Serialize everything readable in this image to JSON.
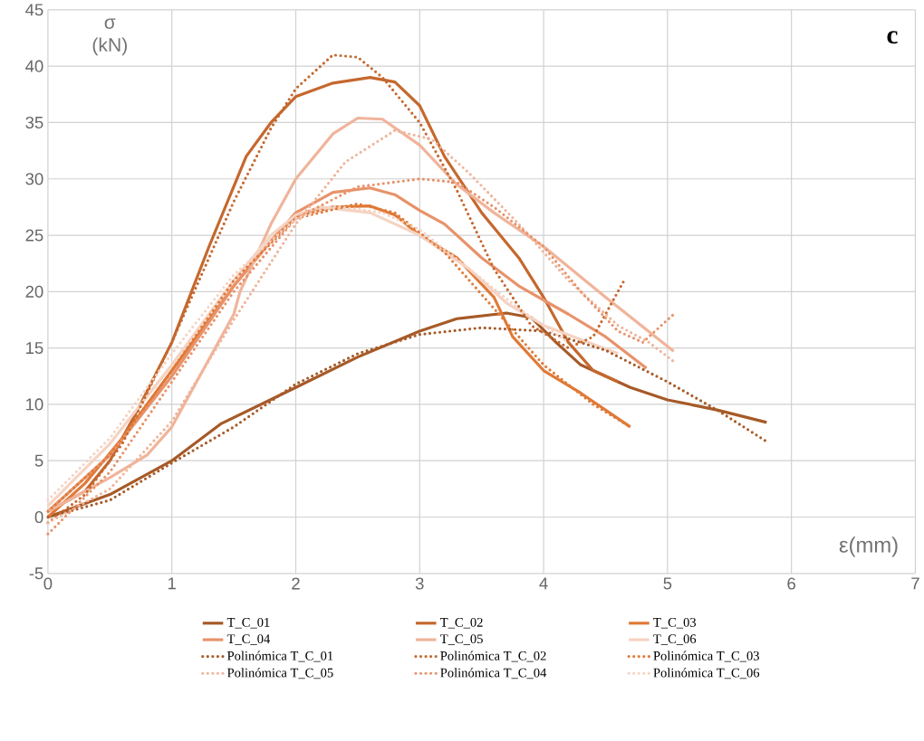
{
  "chart_data": {
    "type": "line",
    "xlabel": "ε(mm)",
    "ylabel": "σ (kN)",
    "annotations": [
      "c"
    ],
    "xlim": [
      0,
      7
    ],
    "ylim": [
      -5,
      45
    ],
    "xticks": [
      0,
      1,
      2,
      3,
      4,
      5,
      6,
      7
    ],
    "yticks": [
      -5,
      0,
      5,
      10,
      15,
      20,
      25,
      30,
      35,
      40,
      45
    ],
    "grid": true,
    "legend": "bottom",
    "marker": "none",
    "series": [
      {
        "name": "T_C_01",
        "color": "#a65a28",
        "line_style": "solid",
        "x": [
          0,
          0.5,
          1,
          1.4,
          2,
          2.5,
          3,
          3.3,
          3.7,
          3.9,
          4.1,
          4.3,
          4.7,
          5,
          5.4,
          5.8
        ],
        "values": [
          0,
          2,
          5,
          8.3,
          11.5,
          14.2,
          16.5,
          17.6,
          18.1,
          17.7,
          15.5,
          13.5,
          11.5,
          10.4,
          9.5,
          8.4
        ]
      },
      {
        "name": "T_C_02",
        "color": "#c5682e",
        "line_style": "solid",
        "x": [
          0,
          0.3,
          0.5,
          0.7,
          1,
          1.3,
          1.6,
          1.8,
          2,
          2.3,
          2.6,
          2.8,
          3,
          3.2,
          3.5,
          3.8,
          4,
          4.2,
          4.4,
          4.6
        ],
        "values": [
          0.5,
          2.3,
          5,
          9,
          15.5,
          24,
          32,
          35,
          37.3,
          38.5,
          39,
          38.6,
          36.5,
          32,
          27,
          23,
          19.5,
          15.5,
          13,
          12
        ]
      },
      {
        "name": "T_C_03",
        "color": "#e07a38",
        "line_style": "solid",
        "x": [
          0,
          0.3,
          0.6,
          1,
          1.5,
          1.8,
          2,
          2.3,
          2.6,
          2.8,
          3,
          3.3,
          3.6,
          3.75,
          4,
          4.3,
          4.7
        ],
        "values": [
          0,
          3,
          7,
          13,
          20.5,
          24.5,
          26.7,
          27.5,
          27.6,
          26.8,
          25,
          23,
          19.5,
          16,
          13,
          11,
          8
        ]
      },
      {
        "name": "T_C_04",
        "color": "#e8926a",
        "line_style": "solid",
        "x": [
          0,
          0.5,
          1,
          1.5,
          1.8,
          2,
          2.3,
          2.6,
          2.8,
          3,
          3.2,
          3.5,
          3.8,
          4.2,
          4.5,
          4.83
        ],
        "values": [
          0.5,
          5.5,
          12.5,
          20.5,
          24.5,
          27,
          28.8,
          29.2,
          28.6,
          27.2,
          26,
          23,
          20.5,
          18,
          16,
          13.2
        ]
      },
      {
        "name": "T_C_05",
        "color": "#f0b49a",
        "line_style": "solid",
        "x": [
          0,
          0.5,
          0.8,
          1,
          1.3,
          1.5,
          1.55,
          1.8,
          2,
          2.3,
          2.5,
          2.7,
          3,
          3.3,
          3.6,
          4,
          4.5,
          5.05
        ],
        "values": [
          0.5,
          3.5,
          5.5,
          8,
          14,
          18,
          20,
          26,
          30,
          34,
          35.4,
          35.3,
          33,
          29.5,
          27,
          24,
          19.5,
          14.7
        ]
      },
      {
        "name": "T_C_06",
        "color": "#f5d3c3",
        "line_style": "solid",
        "x": [
          0,
          0.5,
          1,
          1.5,
          1.8,
          2,
          2.2,
          2.6,
          3,
          3.4,
          3.7,
          4,
          4.6
        ],
        "values": [
          1,
          6.5,
          13.5,
          21,
          25,
          26.8,
          27.5,
          27,
          25,
          22,
          19,
          17,
          14.5
        ]
      },
      {
        "name": "Polinómica T_C_01",
        "color": "#a65a28",
        "line_style": "dotted",
        "x": [
          0,
          0.5,
          1,
          1.5,
          2,
          2.5,
          3,
          3.5,
          4,
          4.5,
          5,
          5.4,
          5.8
        ],
        "values": [
          0,
          1.5,
          4.8,
          8,
          11.8,
          14.5,
          16.2,
          16.8,
          16.5,
          14.8,
          12,
          9.5,
          6.7
        ]
      },
      {
        "name": "Polinómica T_C_02",
        "color": "#c5682e",
        "line_style": "dotted",
        "x": [
          0,
          0.3,
          0.6,
          1,
          1.5,
          1.8,
          2,
          2.3,
          2.5,
          2.7,
          3,
          3.3,
          3.6,
          3.9,
          4.2,
          4.4,
          4.65
        ],
        "values": [
          -0.5,
          2,
          6.5,
          15.5,
          28,
          34.5,
          38,
          41,
          40.8,
          39,
          35,
          29,
          22,
          17,
          15,
          16,
          21
        ]
      },
      {
        "name": "Polinómica T_C_03",
        "color": "#e07a38",
        "line_style": "dotted",
        "x": [
          0,
          0.5,
          1,
          1.5,
          2,
          2.5,
          2.8,
          3.2,
          3.6,
          4,
          4.4,
          4.7
        ],
        "values": [
          0.5,
          5.5,
          13,
          21,
          26.5,
          27.8,
          27,
          23.5,
          18.5,
          13.5,
          10,
          8
        ]
      },
      {
        "name": "Polinómica T_C_05",
        "color": "#f0b49a",
        "line_style": "dotted",
        "x": [
          0,
          0.5,
          1,
          1.5,
          2,
          2.4,
          2.8,
          3.1,
          3.4,
          3.8,
          4.2,
          4.6,
          4.85,
          5.05
        ],
        "values": [
          -0.5,
          2.5,
          8.5,
          17.5,
          26,
          31.5,
          34.3,
          33.5,
          30.5,
          26,
          21,
          17,
          15.5,
          13.8
        ]
      },
      {
        "name": "Polinómica T_C_04",
        "color": "#e8926a",
        "line_style": "dotted",
        "x": [
          0,
          0.5,
          1,
          1.5,
          2,
          2.5,
          3,
          3.3,
          3.6,
          4,
          4.3,
          4.6,
          4.8,
          5.05
        ],
        "values": [
          -1.5,
          4,
          12,
          20,
          26.5,
          29.3,
          30,
          29.7,
          27.5,
          24,
          20,
          16.5,
          15.5,
          18
        ]
      },
      {
        "name": "Polinómica T_C_06",
        "color": "#f5d3c3",
        "line_style": "dotted",
        "x": [
          0,
          0.5,
          1,
          1.5,
          2,
          2.3,
          2.7,
          3,
          3.4,
          3.8,
          4.2
        ],
        "values": [
          1.5,
          7,
          14.5,
          21.5,
          26.5,
          27.6,
          27,
          25.5,
          22,
          18.5,
          15.5
        ]
      }
    ]
  }
}
